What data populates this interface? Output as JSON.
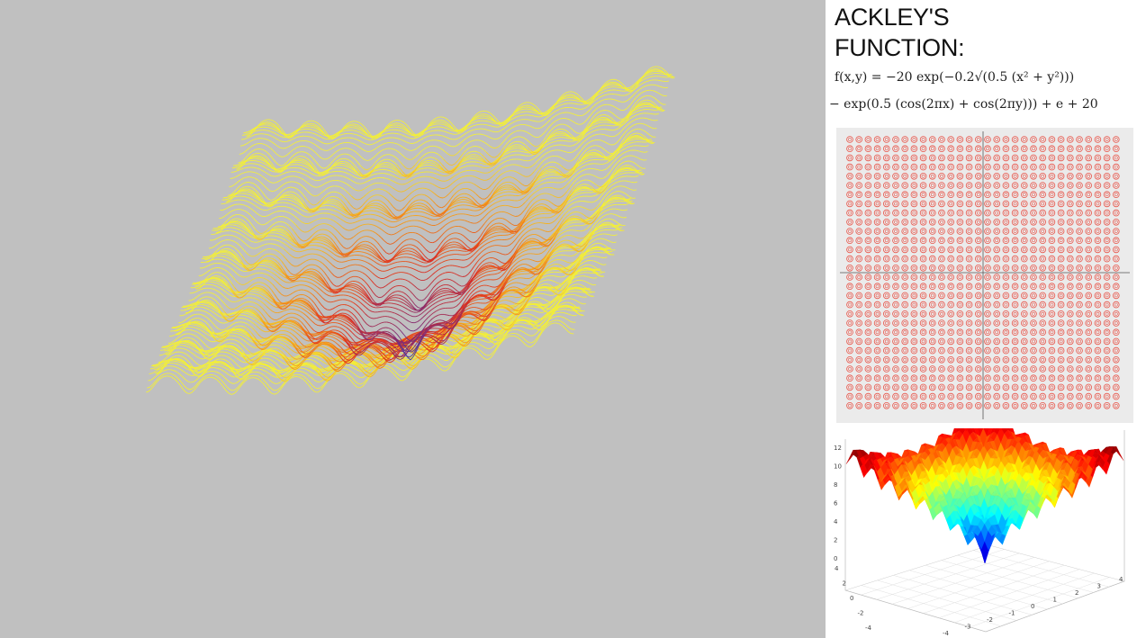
{
  "title": {
    "line1": "ACKLEY'S",
    "line2": "FUNCTION:"
  },
  "formula": {
    "line1": "f(x,y) = −20 exp(−0.2√(0.5 (x² + y²)))",
    "line2": "− exp(0.5 (cos(2πx) + cos(2πy))) + e + 20"
  },
  "surface_plot": {
    "z_ticks": [
      "12",
      "10",
      "8",
      "6",
      "4",
      "2",
      "0"
    ],
    "y_ticks": [
      "4",
      "2",
      "0",
      "-2",
      "-4"
    ],
    "x_ticks": [
      "-4",
      "-3",
      "-2",
      "-1",
      "0",
      "1",
      "2",
      "3",
      "4"
    ]
  },
  "colors": {
    "background_gray": "#c0c0c0",
    "wire_yellow": "#f2ee3a",
    "wire_orange": "#f59a1a",
    "wire_red": "#e0301e",
    "wire_purple": "#7a2a7a",
    "wire_blue": "#3b3fa8",
    "contour_red": "#e8554a"
  }
}
